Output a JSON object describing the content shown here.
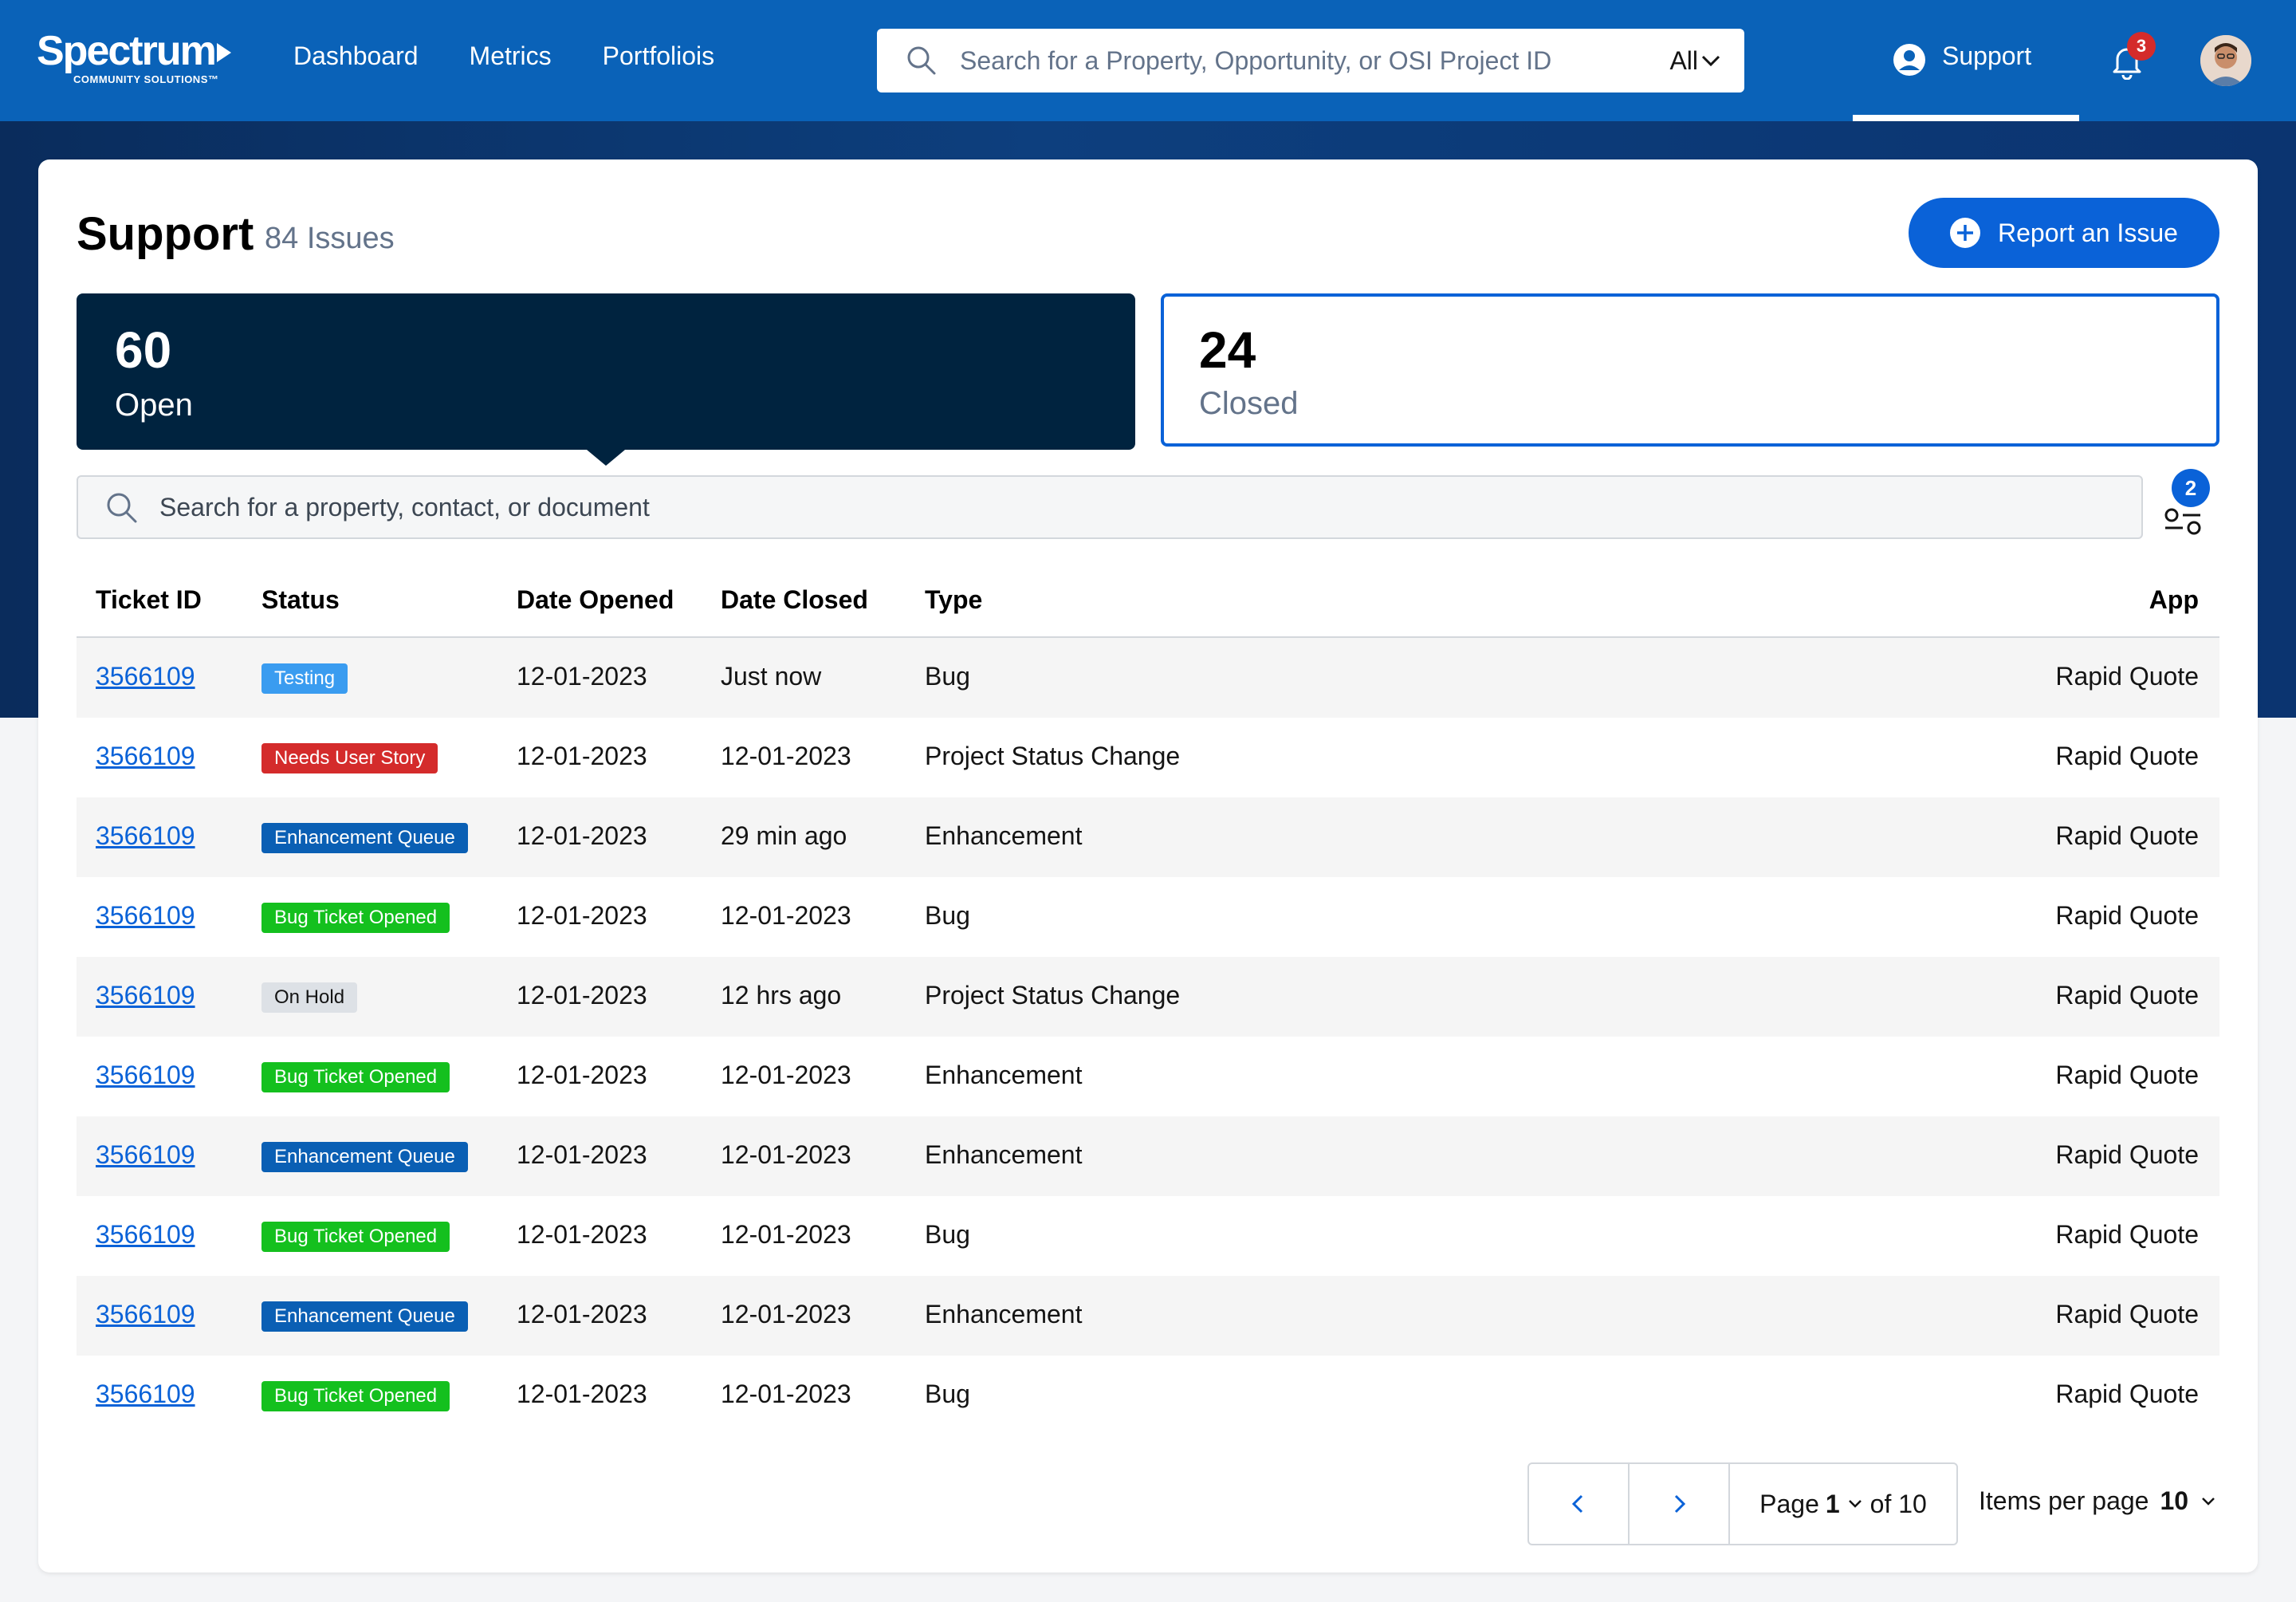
{
  "nav": {
    "brand": "Spectrum",
    "brand_sub": "COMMUNITY SOLUTIONS™",
    "links": [
      "Dashboard",
      "Metrics",
      "Portfoliois"
    ],
    "search_placeholder": "Search for a Property, Opportunity, or OSI Project ID",
    "search_scope": "All",
    "support_label": "Support",
    "notification_count": "3"
  },
  "header": {
    "title": "Support",
    "count": "84 Issues",
    "report_label": "Report an Issue"
  },
  "stats": {
    "open": {
      "value": "60",
      "label": "Open"
    },
    "closed": {
      "value": "24",
      "label": "Closed"
    }
  },
  "list": {
    "search_placeholder": "Search for a property, contact, or document",
    "filter_count": "2"
  },
  "table": {
    "columns": [
      "Ticket ID",
      "Status",
      "Date Opened",
      "Date Closed",
      "Type",
      "App"
    ],
    "rows": [
      {
        "id": "3566109",
        "status": "Testing",
        "opened": "12-01-2023",
        "closed": "Just now",
        "type": "Bug",
        "app": "Rapid Quote"
      },
      {
        "id": "3566109",
        "status": "Needs User Story",
        "opened": "12-01-2023",
        "closed": "12-01-2023",
        "type": "Project Status Change",
        "app": "Rapid Quote"
      },
      {
        "id": "3566109",
        "status": "Enhancement Queue",
        "opened": "12-01-2023",
        "closed": "29 min ago",
        "type": "Enhancement",
        "app": "Rapid Quote"
      },
      {
        "id": "3566109",
        "status": "Bug Ticket Opened",
        "opened": "12-01-2023",
        "closed": "12-01-2023",
        "type": "Bug",
        "app": "Rapid Quote"
      },
      {
        "id": "3566109",
        "status": "On Hold",
        "opened": "12-01-2023",
        "closed": "12 hrs ago",
        "type": "Project Status Change",
        "app": "Rapid Quote"
      },
      {
        "id": "3566109",
        "status": "Bug Ticket Opened",
        "opened": "12-01-2023",
        "closed": "12-01-2023",
        "type": "Enhancement",
        "app": "Rapid Quote"
      },
      {
        "id": "3566109",
        "status": "Enhancement Queue",
        "opened": "12-01-2023",
        "closed": "12-01-2023",
        "type": "Enhancement",
        "app": "Rapid Quote"
      },
      {
        "id": "3566109",
        "status": "Bug Ticket Opened",
        "opened": "12-01-2023",
        "closed": "12-01-2023",
        "type": "Bug",
        "app": "Rapid Quote"
      },
      {
        "id": "3566109",
        "status": "Enhancement Queue",
        "opened": "12-01-2023",
        "closed": "12-01-2023",
        "type": "Enhancement",
        "app": "Rapid Quote"
      },
      {
        "id": "3566109",
        "status": "Bug Ticket Opened",
        "opened": "12-01-2023",
        "closed": "12-01-2023",
        "type": "Bug",
        "app": "Rapid Quote"
      }
    ]
  },
  "status_colors": {
    "Testing": {
      "bg": "#3a9cf0",
      "fg": "#ffffff"
    },
    "Needs User Story": {
      "bg": "#d42b2b",
      "fg": "#ffffff"
    },
    "Enhancement Queue": {
      "bg": "#0a5fb4",
      "fg": "#ffffff"
    },
    "Bug Ticket Opened": {
      "bg": "#14c01e",
      "fg": "#ffffff"
    },
    "On Hold": {
      "bg": "#dde1e6",
      "fg": "#141414"
    }
  },
  "pagination": {
    "page_label": "Page",
    "page": "1",
    "of_label": "of 10",
    "per_page_label": "Items per page",
    "per_page": "10"
  },
  "colors": {
    "brand_blue": "#0a62b8",
    "accent_blue": "#0a62d8",
    "dark_navy": "#00233f"
  }
}
